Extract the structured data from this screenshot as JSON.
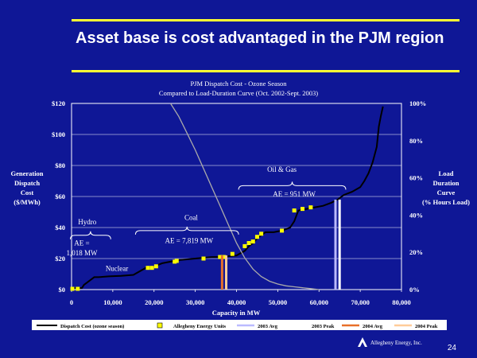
{
  "slide": {
    "title": "Asset base is cost advantaged in the PJM region",
    "page_number": "24",
    "logo_text": "Allegheny Energy, Inc.",
    "colors": {
      "background": "#0F1796",
      "rule": "#FFFF33"
    }
  },
  "chart_data": {
    "type": "line",
    "title": "PJM Dispatch Cost - Ozone Season",
    "subtitle": "Compared to Load-Duration Curve (Oct. 2002-Sept. 2003)",
    "xlabel": "Capacity in MW",
    "ylabel_left": [
      "Generation",
      "Dispatch",
      "Cost",
      "($/MWh)"
    ],
    "ylabel_right": [
      "Load",
      "Duration",
      "Curve",
      "(% Hours Load)"
    ],
    "xlim": [
      0,
      80000
    ],
    "ylim_left": [
      0,
      120
    ],
    "ylim_right": [
      0,
      100
    ],
    "x_ticks": [
      0,
      10000,
      20000,
      30000,
      40000,
      50000,
      60000,
      70000,
      80000
    ],
    "x_tick_labels": [
      "0",
      "10,000",
      "20,000",
      "30,000",
      "40,000",
      "50,000",
      "60,000",
      "70,000",
      "80,000"
    ],
    "y_left_ticks": [
      0,
      20,
      40,
      60,
      80,
      100,
      120
    ],
    "y_left_tick_labels": [
      "$0",
      "$20",
      "$40",
      "$60",
      "$80",
      "$100",
      "$120"
    ],
    "y_right_ticks": [
      0,
      20,
      40,
      60,
      80,
      100
    ],
    "y_right_tick_labels": [
      "0%",
      "20%",
      "40%",
      "60%",
      "80%",
      "100%"
    ],
    "grid": true,
    "series": [
      {
        "name": "Dispatch Cost (ozone season)",
        "color": "#000000",
        "axis": "left",
        "x": [
          0,
          2500,
          3000,
          4500,
          5500,
          6500,
          9000,
          12000,
          15000,
          18000,
          20000,
          22000,
          24000,
          26000,
          28000,
          30000,
          32000,
          34000,
          36000,
          38000,
          40000,
          42000,
          43000,
          44000,
          45000,
          46000,
          47000,
          49000,
          51000,
          53000,
          54000,
          55000,
          57000,
          59000,
          61000,
          63000,
          64500,
          66000,
          68000,
          70000,
          71000,
          72000,
          73000,
          74000,
          74500,
          75000,
          75500
        ],
        "y": [
          1,
          1,
          3,
          6,
          8,
          8,
          8.5,
          8.8,
          9.5,
          14,
          15,
          17,
          18,
          19,
          19.5,
          20,
          20.5,
          21,
          21,
          21.5,
          22,
          25,
          28,
          30,
          33,
          35,
          37,
          37,
          38,
          40,
          44,
          51,
          52,
          53,
          54,
          56,
          58,
          61,
          63,
          66,
          70,
          75,
          82,
          92,
          105,
          112,
          118
        ]
      },
      {
        "name": "",
        "color": "#AAAAAA",
        "axis": "right",
        "x": [
          24000,
          26000,
          28000,
          30000,
          32000,
          34000,
          36000,
          38000,
          40000,
          42000,
          44000,
          46000,
          48000,
          50000,
          52000,
          54000,
          56000,
          58000,
          60000
        ],
        "y": [
          100,
          93,
          84,
          75,
          65,
          55,
          45,
          35,
          25,
          17,
          11,
          7,
          4.5,
          3,
          2,
          1.5,
          1,
          0.5,
          0
        ]
      }
    ],
    "allegheny_units": {
      "name": "Allegheny Energy Units",
      "color": "#FFFF00",
      "x": [
        200,
        1500,
        18500,
        19500,
        20500,
        25000,
        25500,
        32000,
        36000,
        37000,
        39000,
        42000,
        43000,
        44000,
        45000,
        46000,
        51000,
        54000,
        56000,
        58000
      ],
      "y": [
        0.5,
        0.5,
        14,
        14,
        15,
        18,
        18.5,
        20,
        21,
        21,
        23,
        28,
        30,
        31,
        34,
        36,
        38,
        51,
        52,
        53
      ]
    },
    "markers": [
      {
        "name": "2003 Avg",
        "color": "#BBBBFF",
        "x": 64000,
        "value": 58
      },
      {
        "name": "2003 Peak",
        "color": "#FFFFFF",
        "x": 65000,
        "value": 58
      },
      {
        "name": "2004 Avg",
        "color": "#E8702A",
        "x": 36500,
        "value": 22
      },
      {
        "name": "2004 Peak",
        "color": "#FFCC99",
        "x": 37500,
        "value": 22
      }
    ],
    "annotations": [
      {
        "label": "Hydro",
        "x": 3800,
        "y": 42
      },
      {
        "label": "AE =",
        "x": 2500,
        "y": 28.5
      },
      {
        "label": "1,018 MW",
        "x": 2500,
        "y": 22
      },
      {
        "label": "Nuclear",
        "x": 11000,
        "y": 12
      },
      {
        "label": "Coal",
        "x": 29000,
        "y": 45
      },
      {
        "label": "AE = 7,819 MW",
        "x": 28500,
        "y": 30
      },
      {
        "label": "Oil & Gas",
        "x": 51000,
        "y": 76
      },
      {
        "label": "AE = 951 MW",
        "x": 54000,
        "y": 60
      }
    ],
    "braces": [
      {
        "x1": -300,
        "x2": 9500,
        "y": 35
      },
      {
        "x1": 15500,
        "x2": 40500,
        "y": 38
      },
      {
        "x1": 40500,
        "x2": 66500,
        "y": 67
      }
    ],
    "legend": {
      "placement": "bottom",
      "entries": [
        "Dispatch Cost (ozone season)",
        "Allegheny Energy Units",
        "2003 Avg",
        "2003 Peak",
        "2004 Avg",
        "2004 Peak"
      ]
    }
  }
}
